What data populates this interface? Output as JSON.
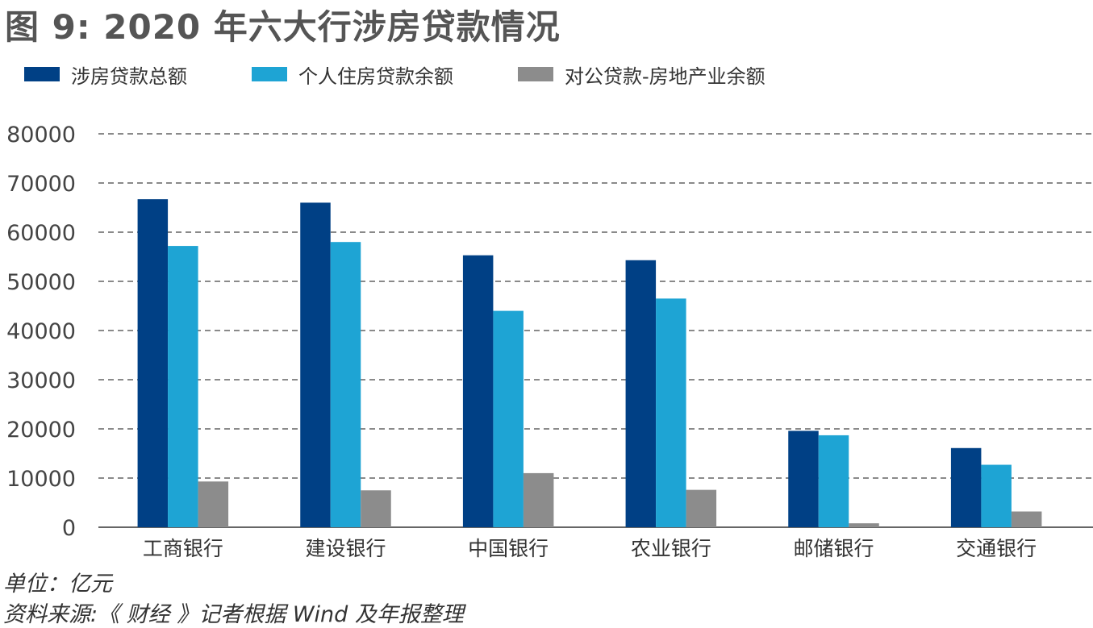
{
  "title": "图 9: 2020 年六大行涉房贷款情况",
  "colors": {
    "series": [
      "#004085",
      "#1ea4d4",
      "#8c8c8c"
    ],
    "grid": "#444444",
    "text": "#444444"
  },
  "chart_data": {
    "type": "bar",
    "title": "图 9: 2020 年六大行涉房贷款情况",
    "categories": [
      "工商银行",
      "建设银行",
      "中国银行",
      "农业银行",
      "邮储银行",
      "交通银行"
    ],
    "series": [
      {
        "name": "涉房贷款总额",
        "values": [
          66700,
          66000,
          55300,
          54300,
          19600,
          16100
        ]
      },
      {
        "name": "个人住房贷款余额",
        "values": [
          57200,
          58000,
          44000,
          46500,
          18700,
          12700
        ]
      },
      {
        "name": "对公贷款-房地产业余额",
        "values": [
          9300,
          7500,
          11000,
          7600,
          800,
          3200
        ]
      }
    ],
    "y_ticks": [
      0,
      10000,
      20000,
      30000,
      40000,
      50000,
      60000,
      70000,
      80000
    ],
    "ylim": [
      0,
      80000
    ],
    "grid": "dashed horizontal",
    "legend": "top-left"
  },
  "notes": {
    "unit": "单位：亿元",
    "source": "资料来源:《 财经 》记者根据 Wind 及年报整理"
  }
}
